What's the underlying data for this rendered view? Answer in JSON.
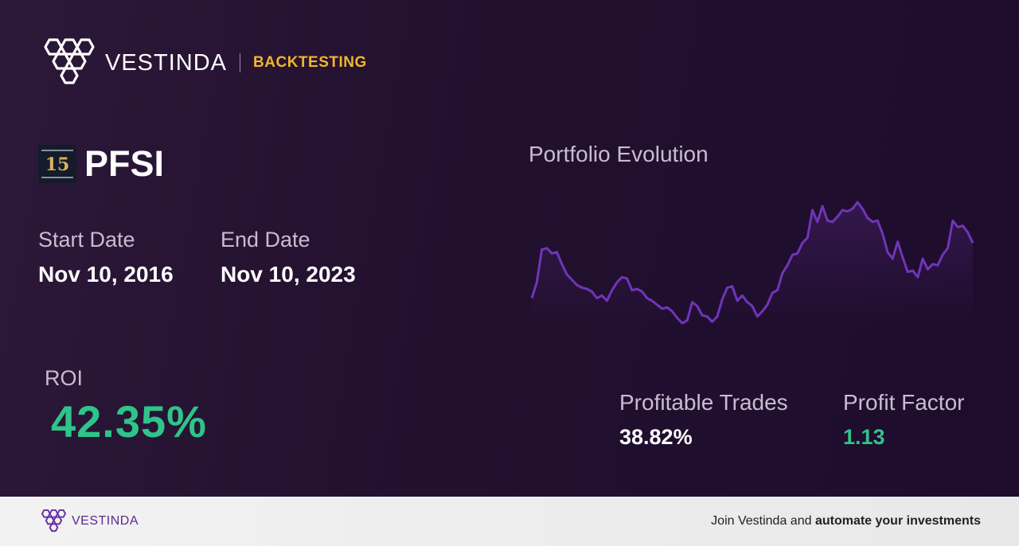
{
  "brand": {
    "logo_icon": "vestinda-hexagon-logo",
    "name": "VESTINDA",
    "section": "BACKTESTING",
    "accent_color": "#f2b62a"
  },
  "asset": {
    "logo_icon": "pennymac-15-year-logo",
    "logo_text": "15",
    "ticker": "PFSI"
  },
  "dates": {
    "start_label": "Start Date",
    "start_value": "Nov 10, 2016",
    "end_label": "End Date",
    "end_value": "Nov 10, 2023"
  },
  "roi": {
    "label": "ROI",
    "value": "42.35%",
    "color": "#2fc48a"
  },
  "chart": {
    "title": "Portfolio Evolution",
    "line_color": "#6f35b8"
  },
  "chart_data": {
    "type": "area",
    "title": "Portfolio Evolution",
    "xlabel": "",
    "ylabel": "",
    "axes_visible": false,
    "grid": false,
    "series": [
      {
        "values": [
          26,
          38,
          63,
          64,
          60,
          61,
          52,
          44,
          40,
          36,
          34,
          33,
          31,
          26,
          28,
          24,
          32,
          38,
          42,
          41,
          32,
          33,
          31,
          26,
          24,
          21,
          18,
          19,
          16,
          11,
          7,
          9,
          23,
          20,
          13,
          12,
          8,
          12,
          25,
          34,
          35,
          24,
          28,
          23,
          20,
          12,
          16,
          21,
          30,
          32,
          45,
          51,
          59,
          60,
          68,
          72,
          93,
          84,
          96,
          85,
          84,
          88,
          93,
          92,
          94,
          99,
          94,
          87,
          84,
          85,
          75,
          61,
          56,
          69,
          57,
          46,
          47,
          42,
          56,
          48,
          52,
          51,
          59,
          64,
          85,
          80,
          81,
          76,
          68
        ]
      }
    ]
  },
  "stats": {
    "profitable_label": "Profitable Trades",
    "profitable_value": "38.82%",
    "profitable_color": "#ffffff",
    "factor_label": "Profit Factor",
    "factor_value": "1.13",
    "factor_color": "#2fc48a"
  },
  "footer": {
    "logo_icon": "vestinda-hexagon-logo",
    "brand": "VESTINDA",
    "cta_prefix": "Join Vestinda and ",
    "cta_bold": "automate your investments"
  }
}
